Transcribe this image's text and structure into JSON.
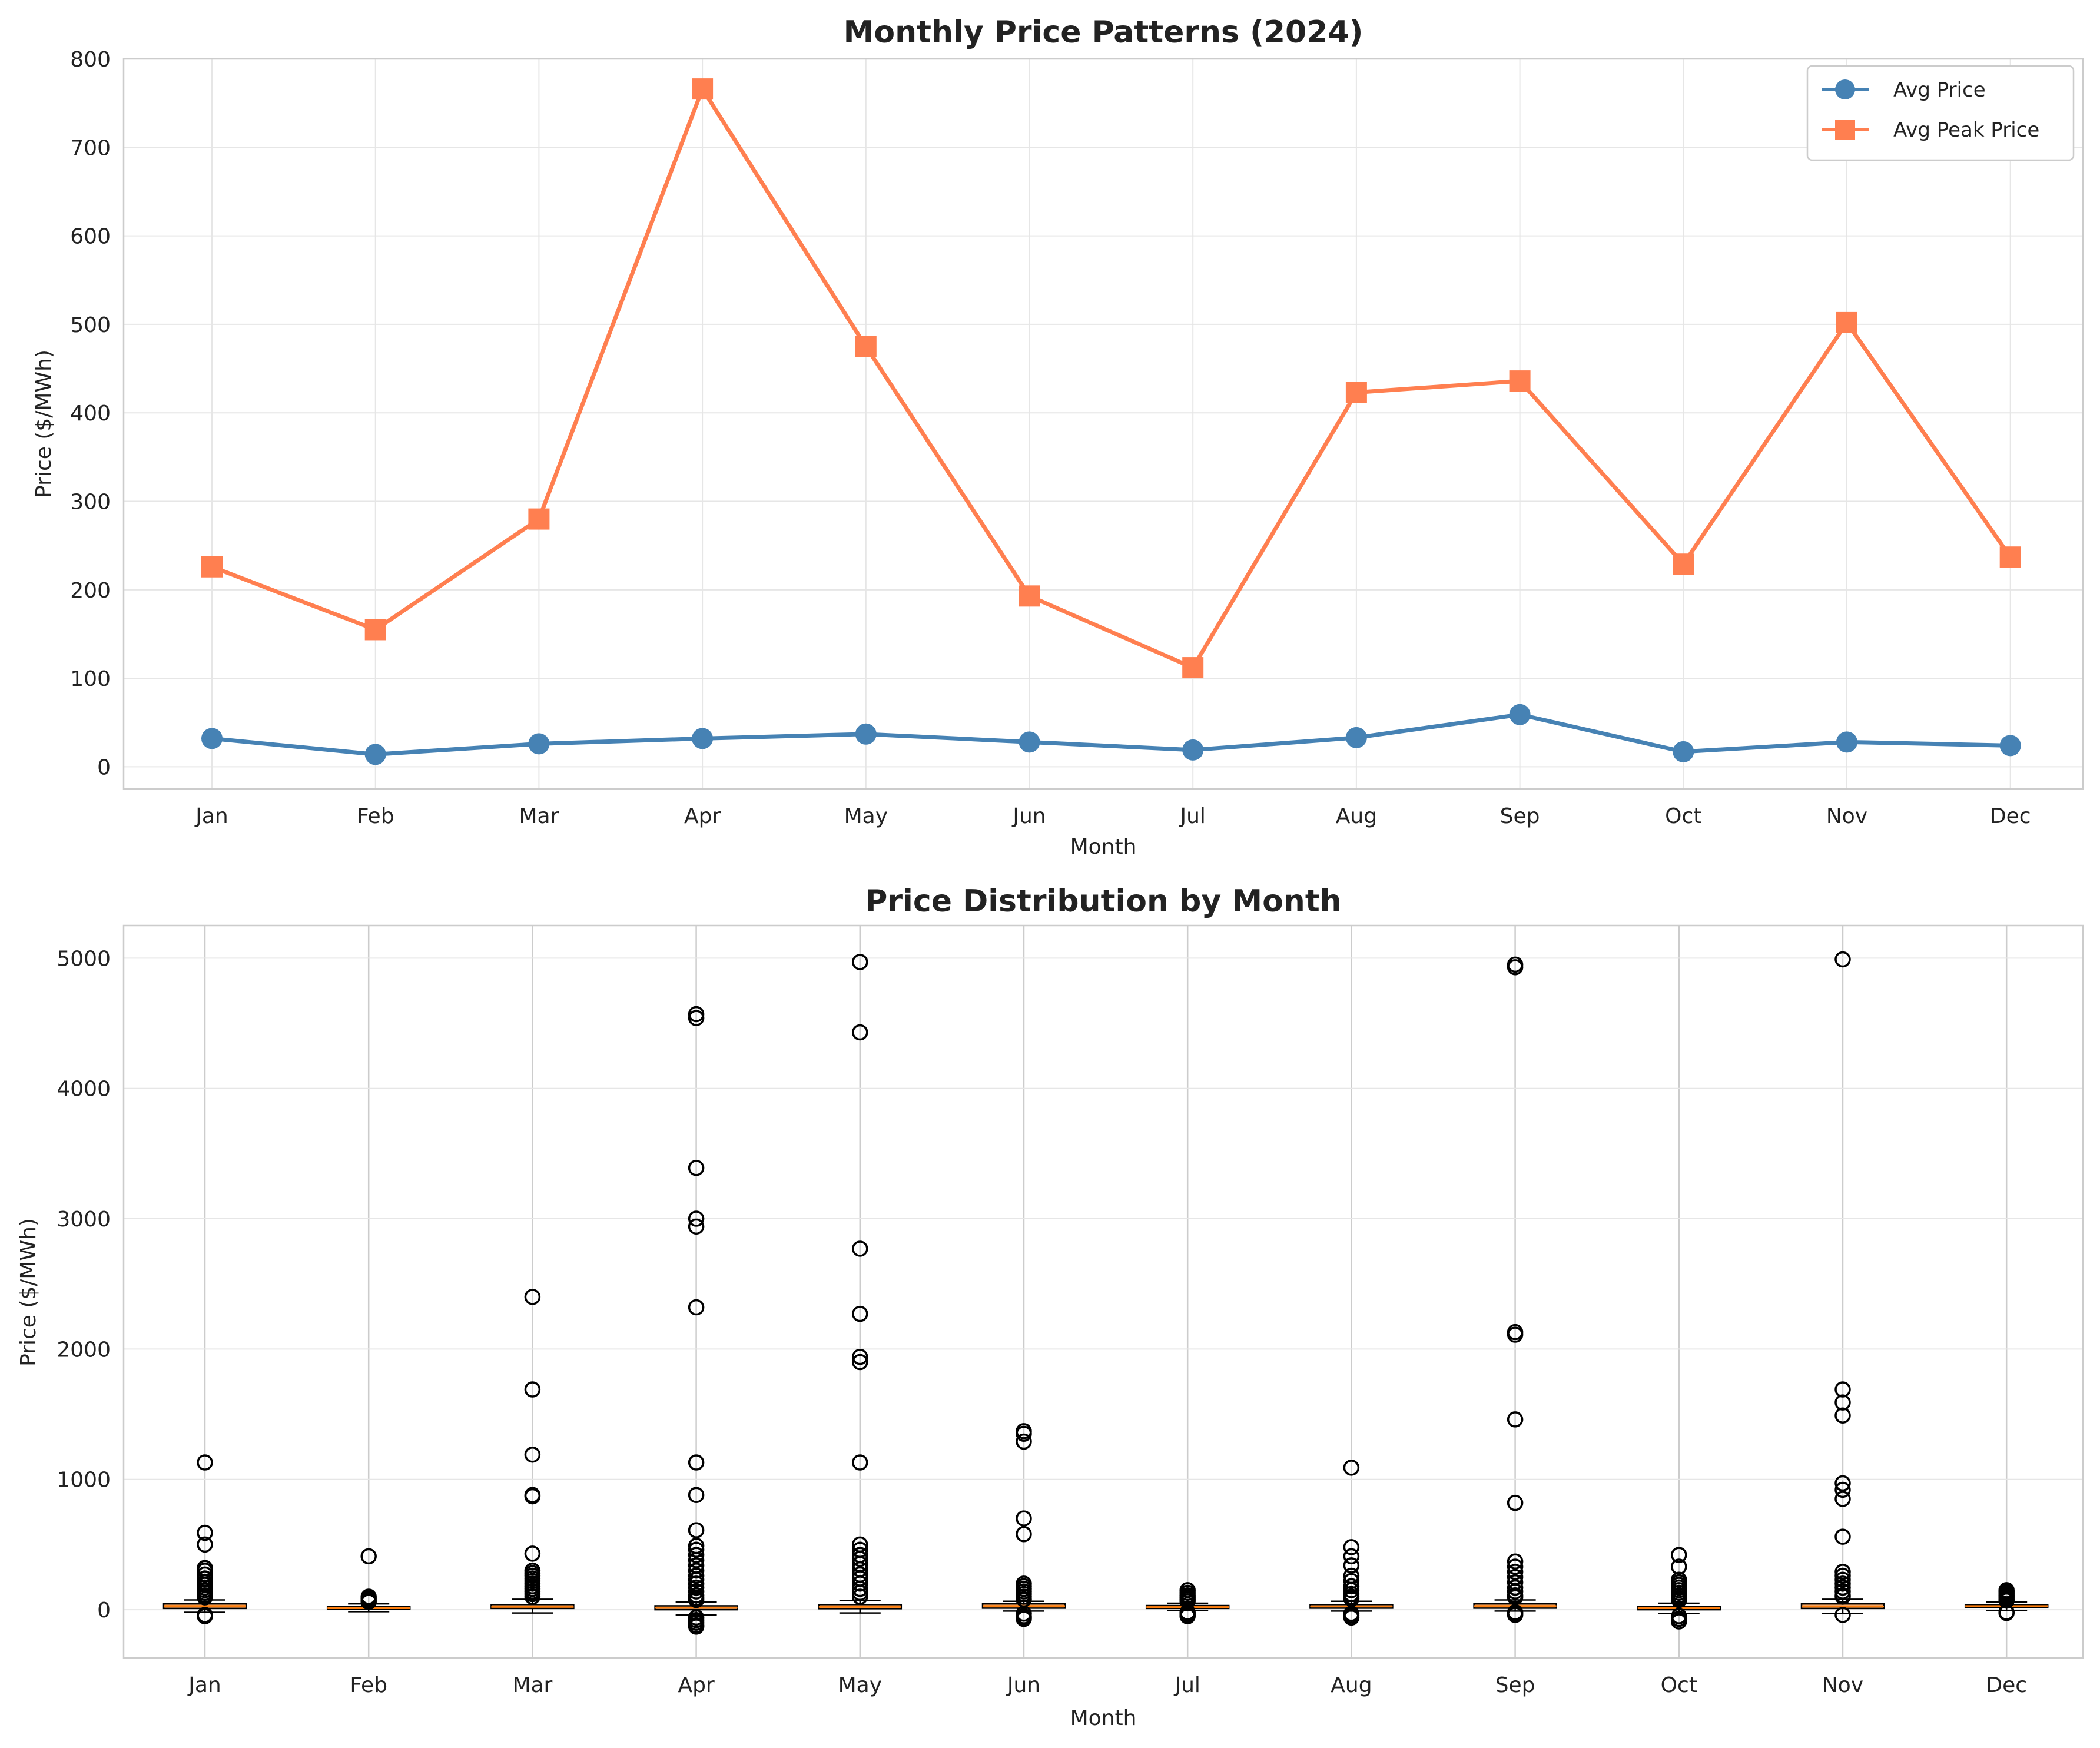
{
  "chart_data": [
    {
      "type": "line",
      "title": "Monthly Price Patterns (2024)",
      "xlabel": "Month",
      "ylabel": "Price ($/MWh)",
      "categories": [
        "Jan",
        "Feb",
        "Mar",
        "Apr",
        "May",
        "Jun",
        "Jul",
        "Aug",
        "Sep",
        "Oct",
        "Nov",
        "Dec"
      ],
      "ylim": [
        -25,
        800
      ],
      "yticks": [
        0,
        100,
        200,
        300,
        400,
        500,
        600,
        700,
        800
      ],
      "grid": true,
      "legend_position": "top-right",
      "series": [
        {
          "name": "Avg Price",
          "marker": "circle",
          "color": "#4682b4",
          "values": [
            32,
            14,
            26,
            32,
            37,
            28,
            19,
            33,
            59,
            17,
            28,
            24
          ]
        },
        {
          "name": "Avg Peak Price",
          "marker": "square",
          "color": "#ff7f50",
          "values": [
            226,
            155,
            280,
            766,
            475,
            193,
            112,
            423,
            436,
            229,
            502,
            237
          ]
        }
      ]
    },
    {
      "type": "box",
      "title": "Price Distribution by Month",
      "xlabel": "Month",
      "ylabel": "Price ($/MWh)",
      "categories": [
        "Jan",
        "Feb",
        "Mar",
        "Apr",
        "May",
        "Jun",
        "Jul",
        "Aug",
        "Sep",
        "Oct",
        "Nov",
        "Dec"
      ],
      "ylim": [
        -370,
        5250
      ],
      "yticks": [
        0,
        1000,
        2000,
        3000,
        4000,
        5000
      ],
      "grid": true,
      "box_color": "#f4a460",
      "median_color": "#ff7f0e",
      "boxes": [
        {
          "q1": 10,
          "median": 28,
          "q3": 45,
          "whisker_low": -20,
          "whisker_high": 75,
          "outliers": [
            1130,
            590,
            500,
            320,
            300,
            270,
            240,
            210,
            190,
            170,
            150,
            130,
            110,
            95,
            -40,
            -50
          ]
        },
        {
          "q1": 3,
          "median": 12,
          "q3": 25,
          "whisker_low": -15,
          "whisker_high": 45,
          "outliers": [
            410,
            100,
            85,
            70,
            60
          ]
        },
        {
          "q1": 10,
          "median": 22,
          "q3": 40,
          "whisker_low": -25,
          "whisker_high": 80,
          "outliers": [
            2400,
            1690,
            1190,
            880,
            870,
            430,
            300,
            280,
            260,
            240,
            220,
            200,
            180,
            160,
            140,
            120,
            100
          ]
        },
        {
          "q1": 0,
          "median": 15,
          "q3": 30,
          "whisker_low": -40,
          "whisker_high": 60,
          "outliers": [
            4570,
            4540,
            3390,
            3000,
            2940,
            2320,
            1130,
            880,
            610,
            490,
            460,
            420,
            380,
            340,
            300,
            260,
            230,
            200,
            170,
            140,
            110,
            90,
            75,
            -60,
            -80,
            -100,
            -120,
            -130
          ]
        },
        {
          "q1": 8,
          "median": 22,
          "q3": 40,
          "whisker_low": -25,
          "whisker_high": 70,
          "outliers": [
            4970,
            4430,
            2770,
            2270,
            1940,
            1900,
            1130,
            500,
            460,
            420,
            390,
            350,
            310,
            270,
            240,
            200,
            160,
            130,
            100
          ]
        },
        {
          "q1": 12,
          "median": 28,
          "q3": 45,
          "whisker_low": -10,
          "whisker_high": 65,
          "outliers": [
            1370,
            1350,
            1290,
            700,
            580,
            200,
            180,
            160,
            140,
            120,
            100,
            80,
            -30,
            -50,
            -60,
            -70
          ]
        },
        {
          "q1": 10,
          "median": 20,
          "q3": 32,
          "whisker_low": -5,
          "whisker_high": 50,
          "outliers": [
            150,
            130,
            110,
            95,
            80,
            65,
            -20,
            -30,
            -40,
            -50
          ]
        },
        {
          "q1": 12,
          "median": 26,
          "q3": 40,
          "whisker_low": -10,
          "whisker_high": 65,
          "outliers": [
            1090,
            480,
            410,
            340,
            260,
            220,
            180,
            150,
            120,
            100,
            85,
            -30,
            -45,
            -60
          ]
        },
        {
          "q1": 12,
          "median": 28,
          "q3": 45,
          "whisker_low": -10,
          "whisker_high": 75,
          "outliers": [
            4950,
            4930,
            2130,
            2110,
            1460,
            820,
            370,
            330,
            290,
            250,
            210,
            170,
            140,
            110,
            95,
            -20,
            -30,
            -40
          ]
        },
        {
          "q1": 0,
          "median": 12,
          "q3": 25,
          "whisker_low": -30,
          "whisker_high": 50,
          "outliers": [
            420,
            330,
            230,
            210,
            190,
            170,
            150,
            130,
            110,
            90,
            75,
            -50,
            -70,
            -90
          ]
        },
        {
          "q1": 10,
          "median": 25,
          "q3": 45,
          "whisker_low": -30,
          "whisker_high": 80,
          "outliers": [
            4990,
            1690,
            1590,
            1490,
            970,
            920,
            850,
            560,
            290,
            260,
            230,
            200,
            170,
            140,
            110,
            100,
            -40
          ]
        },
        {
          "q1": 15,
          "median": 28,
          "q3": 40,
          "whisker_low": -5,
          "whisker_high": 60,
          "outliers": [
            150,
            140,
            130,
            120,
            110,
            100,
            90,
            80,
            70,
            -20,
            -25
          ]
        }
      ]
    }
  ]
}
